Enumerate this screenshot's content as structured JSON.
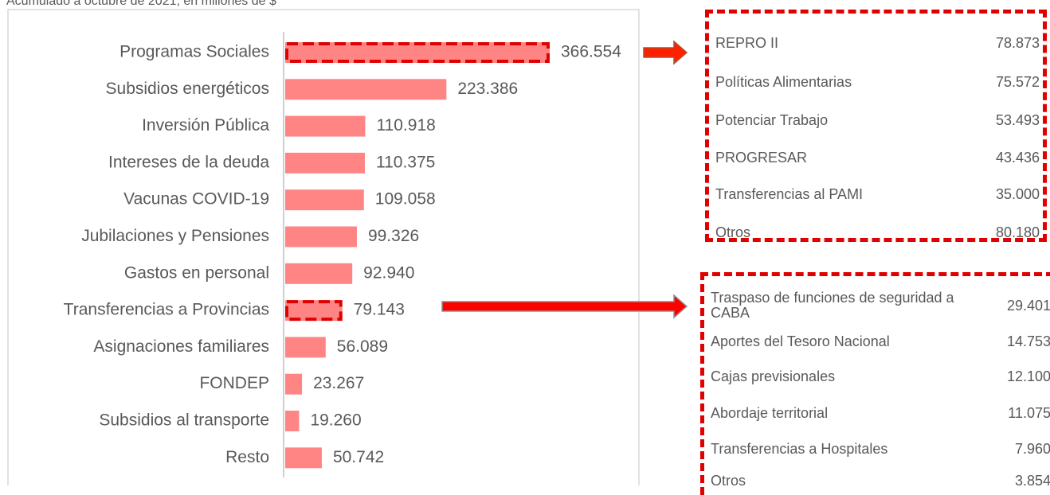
{
  "chart_data": {
    "type": "bar",
    "orientation": "horizontal",
    "subtitle": "Acumulado a octubre de 2021, en millones de $",
    "color": "#ff8585",
    "highlight_color": "#e00000",
    "categories": [
      "Programas Sociales",
      "Subsidios energéticos",
      "Inversión Pública",
      "Intereses de la deuda",
      "Vacunas COVID-19",
      "Jubilaciones y Pensiones",
      "Gastos en personal",
      "Transferencias a Provincias",
      "Asignaciones familiares",
      "FONDEP",
      "Subsidios al transporte",
      "Resto"
    ],
    "values": [
      366554,
      223386,
      110918,
      110375,
      109058,
      99326,
      92940,
      79143,
      56089,
      23267,
      19260,
      50742
    ],
    "value_labels": [
      "366.554",
      "223.386",
      "110.918",
      "110.375",
      "109.058",
      "99.326",
      "92.940",
      "79.143",
      "56.089",
      "23.267",
      "19.260",
      "50.742"
    ],
    "highlighted": [
      "Programas Sociales",
      "Transferencias a Provincias"
    ]
  },
  "tables": [
    {
      "rows": [
        [
          "REPRO II",
          "78.873"
        ],
        [
          "Políticas Alimentarias",
          "75.572"
        ],
        [
          "Potenciar Trabajo",
          "53.493"
        ],
        [
          "PROGRESAR",
          "43.436"
        ],
        [
          "Transferencias al PAMI",
          "35.000"
        ],
        [
          "Otros",
          "80.180"
        ]
      ]
    },
    {
      "rows": [
        [
          "Traspaso de funciones de seguridad a CABA",
          "29.401"
        ],
        [
          "Aportes del Tesoro Nacional",
          "14.753"
        ],
        [
          "Cajas previsionales",
          "12.100"
        ],
        [
          "Abordaje territorial",
          "11.075"
        ],
        [
          "Transferencias a Hospitales",
          "7.960"
        ],
        [
          "Otros",
          "3.854"
        ]
      ]
    }
  ]
}
